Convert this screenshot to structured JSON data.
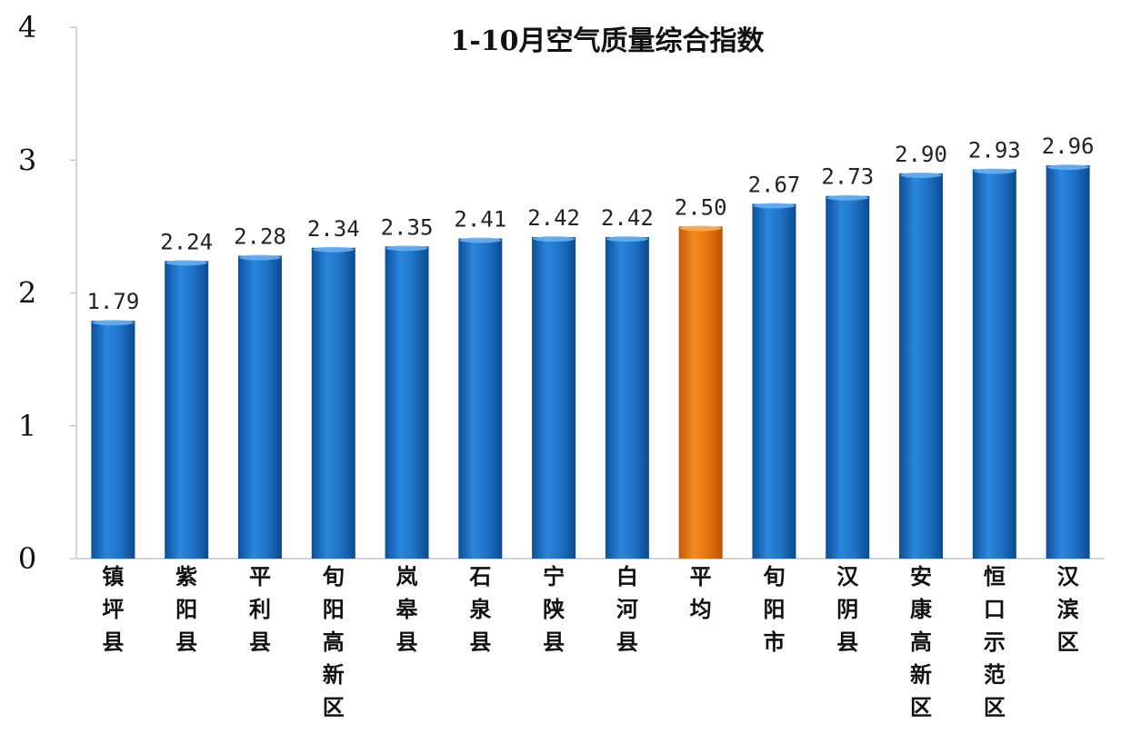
{
  "chart_data": {
    "type": "bar",
    "title": "1-10月空气质量综合指数",
    "categories": [
      "镇坪县",
      "紫阳县",
      "平利县",
      "旬阳高新区",
      "岚皋县",
      "石泉县",
      "宁陕县",
      "白河县",
      "平均",
      "旬阳市",
      "汉阴县",
      "安康高新区",
      "恒口示范区",
      "汉滨区"
    ],
    "values": [
      1.79,
      2.24,
      2.28,
      2.34,
      2.35,
      2.41,
      2.42,
      2.42,
      2.5,
      2.67,
      2.73,
      2.9,
      2.93,
      2.96
    ],
    "data_labels": [
      "1.79",
      "2.24",
      "2.28",
      "2.34",
      "2.35",
      "2.41",
      "2.42",
      "2.42",
      "2.50",
      "2.67",
      "2.73",
      "2.90",
      "2.93",
      "2.96"
    ],
    "ylim": [
      0,
      4
    ],
    "yticks": [
      "0",
      "1",
      "2",
      "3",
      "4"
    ],
    "xlabel": "",
    "ylabel": "",
    "grid": false,
    "highlight_category": "平均",
    "colors": {
      "bar": "#1f6fc0",
      "highlight": "#e8720f"
    }
  }
}
